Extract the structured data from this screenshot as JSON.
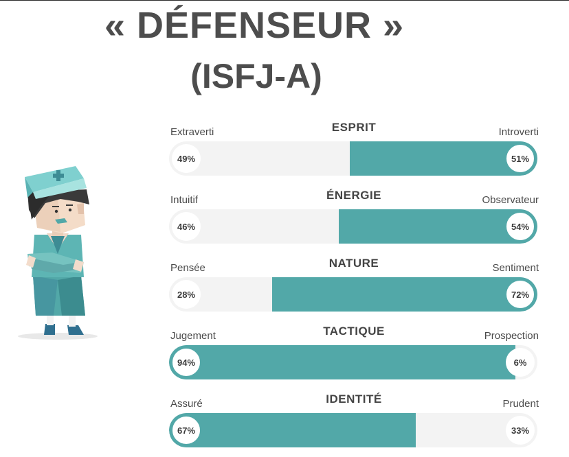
{
  "header": {
    "title": "« DÉFENSEUR »",
    "subtitle": "(ISFJ-A)"
  },
  "colors": {
    "accent": "#52a8a8",
    "track": "#f3f3f3",
    "text": "#4a4a4a"
  },
  "illustration": {
    "icon": "nurse-character-illustration"
  },
  "traits": [
    {
      "category": "ESPRIT",
      "left_label": "Extraverti",
      "right_label": "Introverti",
      "left_pct": "49%",
      "right_pct": "51%",
      "dominant": "right",
      "dominant_value": 51
    },
    {
      "category": "ÉNERGIE",
      "left_label": "Intuitif",
      "right_label": "Observateur",
      "left_pct": "46%",
      "right_pct": "54%",
      "dominant": "right",
      "dominant_value": 54
    },
    {
      "category": "NATURE",
      "left_label": "Pensée",
      "right_label": "Sentiment",
      "left_pct": "28%",
      "right_pct": "72%",
      "dominant": "right",
      "dominant_value": 72
    },
    {
      "category": "TACTIQUE",
      "left_label": "Jugement",
      "right_label": "Prospection",
      "left_pct": "94%",
      "right_pct": "6%",
      "dominant": "left",
      "dominant_value": 94
    },
    {
      "category": "IDENTITÉ",
      "left_label": "Assuré",
      "right_label": "Prudent",
      "left_pct": "67%",
      "right_pct": "33%",
      "dominant": "left",
      "dominant_value": 67
    }
  ]
}
